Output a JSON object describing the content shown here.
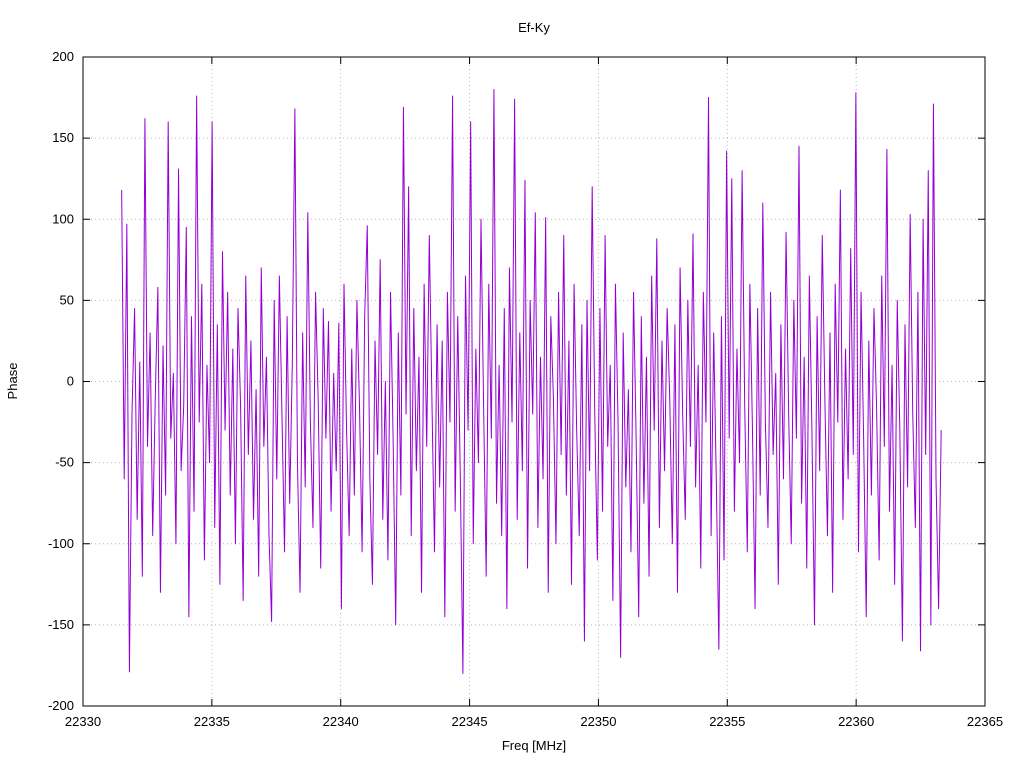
{
  "chart_data": {
    "type": "line",
    "title": "Ef-Ky",
    "xlabel": "Freq [MHz]",
    "ylabel": "Phase",
    "xlim": [
      22330,
      22365
    ],
    "ylim": [
      -200,
      200
    ],
    "xticks": [
      22330,
      22335,
      22340,
      22345,
      22350,
      22355,
      22360,
      22365
    ],
    "yticks": [
      -200,
      -150,
      -100,
      -50,
      0,
      50,
      100,
      150,
      200
    ],
    "grid": true,
    "legend": "none",
    "line_color": "#9400d3",
    "grid_color": "#b8b8b8",
    "series": [
      {
        "name": "Ef-Ky",
        "x_start": 22331.5,
        "x_end": 22363.3,
        "y": [
          118,
          -60,
          97,
          -179,
          -20,
          45,
          -85,
          12,
          -120,
          162,
          -40,
          30,
          -95,
          -10,
          58,
          -130,
          22,
          -70,
          160,
          -35,
          5,
          -100,
          131,
          -55,
          -15,
          95,
          -145,
          40,
          -80,
          176,
          -25,
          60,
          -110,
          10,
          -50,
          160,
          -90,
          35,
          -125,
          80,
          -30,
          55,
          -70,
          20,
          -100,
          45,
          -15,
          -135,
          65,
          -45,
          25,
          -85,
          -5,
          -120,
          70,
          -40,
          15,
          -95,
          -148,
          50,
          -60,
          65,
          -20,
          -105,
          40,
          -75,
          10,
          168,
          -50,
          -130,
          30,
          -65,
          104,
          -25,
          -90,
          55,
          -10,
          -115,
          45,
          -35,
          37,
          -80,
          5,
          -55,
          36,
          -140,
          60,
          -30,
          -95,
          20,
          -70,
          50,
          -15,
          -105,
          40,
          96,
          -60,
          -125,
          25,
          -45,
          75,
          -85,
          0,
          -110,
          55,
          -35,
          -150,
          30,
          -70,
          169,
          -20,
          120,
          -95,
          45,
          -55,
          15,
          -130,
          60,
          -40,
          90,
          -10,
          -105,
          35,
          -65,
          25,
          -145,
          55,
          -25,
          176,
          -80,
          40,
          -60,
          -180,
          65,
          -30,
          160,
          -100,
          20,
          -50,
          100,
          -15,
          -120,
          60,
          -35,
          180,
          -75,
          10,
          -95,
          45,
          -140,
          70,
          -25,
          174,
          -85,
          30,
          -55,
          124,
          -115,
          50,
          -20,
          104,
          -90,
          15,
          -60,
          101,
          -130,
          40,
          -10,
          -100,
          55,
          -45,
          90,
          -70,
          25,
          -125,
          60,
          -30,
          -95,
          35,
          -160,
          50,
          -55,
          120,
          -20,
          -110,
          45,
          -80,
          90,
          -40,
          10,
          -135,
          60,
          -25,
          -170,
          30,
          -65,
          -5,
          -105,
          55,
          -35,
          -145,
          40,
          -75,
          15,
          -120,
          65,
          -30,
          88,
          -90,
          25,
          -55,
          45,
          -10,
          -100,
          35,
          -130,
          70,
          -20,
          -85,
          50,
          -40,
          91,
          -65,
          10,
          -115,
          55,
          -25,
          175,
          -95,
          30,
          -60,
          -165,
          40,
          -110,
          142,
          -35,
          125,
          -80,
          20,
          -50,
          130,
          -15,
          -105,
          60,
          -30,
          -140,
          45,
          -70,
          110,
          -25,
          -90,
          55,
          -45,
          5,
          -125,
          35,
          -60,
          92,
          -20,
          -100,
          50,
          -35,
          145,
          -75,
          15,
          -115,
          65,
          -30,
          -150,
          40,
          -55,
          90,
          -10,
          -95,
          30,
          -130,
          60,
          -25,
          118,
          -85,
          20,
          -60,
          82,
          -45,
          178,
          -105,
          55,
          -35,
          -145,
          25,
          -70,
          45,
          -15,
          -110,
          65,
          -40,
          143,
          -80,
          10,
          -125,
          50,
          -30,
          -160,
          35,
          -65,
          103,
          -20,
          -90,
          55,
          -166,
          100,
          -45,
          130,
          -150,
          171,
          -60,
          -140,
          -30
        ]
      }
    ]
  }
}
